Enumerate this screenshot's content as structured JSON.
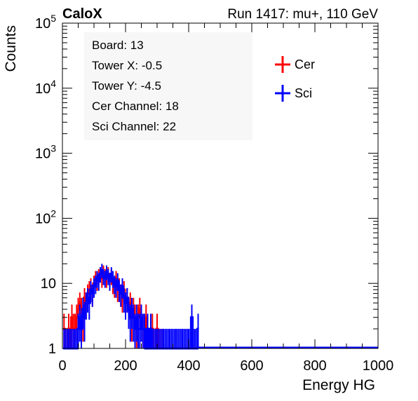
{
  "header": {
    "experiment": "CaloX",
    "run_info": "Run 1417: mu+, 110 GeV"
  },
  "info_box": {
    "lines": [
      "Board: 13",
      "Tower X: -0.5",
      "Tower Y: -4.5",
      "Cer Channel: 18",
      "Sci Channel: 22"
    ]
  },
  "chart_data": {
    "type": "line",
    "xlabel": "Energy HG",
    "ylabel": "Counts",
    "xlim": [
      0,
      1000
    ],
    "ylim": [
      1,
      100000
    ],
    "y_scale": "log",
    "x_ticks": [
      0,
      200,
      400,
      600,
      800,
      1000
    ],
    "x_tick_labels": [
      "0",
      "200",
      "400",
      "600",
      "800",
      "1000"
    ],
    "y_ticks": [
      1,
      10,
      100,
      1000,
      10000,
      100000
    ],
    "y_tick_labels": [
      "1",
      "10",
      "10^2",
      "10^3",
      "10^4",
      "10^5"
    ],
    "grid": false,
    "legend_position": "top-right",
    "series": [
      {
        "name": "Cer",
        "color": "#ff0000",
        "style": "histogram",
        "x": [
          5,
          10,
          15,
          20,
          25,
          30,
          35,
          40,
          45,
          50,
          55,
          60,
          65,
          70,
          75,
          80,
          85,
          90,
          95,
          100,
          105,
          110,
          115,
          120,
          125,
          130,
          135,
          140,
          145,
          150,
          155,
          160,
          165,
          170,
          175,
          180,
          185,
          190,
          195,
          200,
          205,
          210,
          215,
          220,
          225,
          230,
          235,
          240,
          245,
          250,
          255,
          260,
          265,
          270,
          275,
          280,
          285,
          290,
          295,
          300,
          305,
          310,
          315,
          320
        ],
        "values": [
          2,
          1,
          1,
          2,
          1,
          3,
          2,
          2,
          3,
          4,
          5,
          4,
          3,
          6,
          5,
          7,
          8,
          9,
          7,
          10,
          12,
          11,
          13,
          14,
          12,
          15,
          13,
          12,
          14,
          11,
          13,
          10,
          9,
          12,
          8,
          9,
          7,
          6,
          8,
          5,
          6,
          4,
          5,
          3,
          4,
          3,
          2,
          3,
          4,
          3,
          2,
          2,
          3,
          2,
          1,
          2,
          2,
          1,
          1,
          2,
          1,
          1,
          1,
          1
        ]
      },
      {
        "name": "Sci",
        "color": "#0000ff",
        "style": "histogram",
        "x": [
          5,
          10,
          15,
          20,
          25,
          30,
          35,
          40,
          45,
          50,
          55,
          60,
          65,
          70,
          75,
          80,
          85,
          90,
          95,
          100,
          105,
          110,
          115,
          120,
          125,
          130,
          135,
          140,
          145,
          150,
          155,
          160,
          165,
          170,
          175,
          180,
          185,
          190,
          195,
          200,
          205,
          210,
          215,
          220,
          225,
          230,
          235,
          240,
          245,
          250,
          255,
          260,
          265,
          270,
          275,
          280,
          285,
          290,
          295,
          300,
          305,
          310,
          315,
          320,
          325,
          330,
          335,
          340,
          345,
          350,
          355,
          360,
          365,
          370,
          375,
          380,
          385,
          390,
          395,
          400,
          405,
          410,
          415,
          420,
          425,
          430
        ],
        "values": [
          1,
          1,
          1,
          1,
          1,
          1,
          1,
          1,
          1,
          2,
          3,
          2,
          4,
          3,
          5,
          6,
          5,
          8,
          7,
          9,
          10,
          12,
          11,
          14,
          16,
          13,
          12,
          15,
          13,
          11,
          14,
          12,
          10,
          9,
          11,
          8,
          7,
          9,
          6,
          5,
          6,
          4,
          3,
          4,
          3,
          2,
          3,
          2,
          2,
          3,
          2,
          2,
          1,
          2,
          1,
          2,
          1,
          1,
          1,
          1,
          1,
          1,
          1,
          1,
          1,
          1,
          1,
          1,
          1,
          1,
          1,
          1,
          1,
          1,
          1,
          1,
          1,
          1,
          1,
          1,
          1,
          3,
          1,
          1,
          1,
          2
        ]
      }
    ]
  }
}
